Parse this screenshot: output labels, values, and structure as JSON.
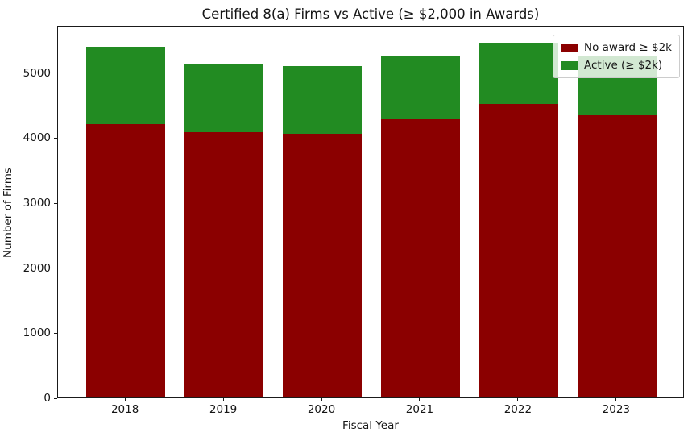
{
  "figure": {
    "title": "Certified 8(a) Firms vs Active (≥ $2,000 in Awards)",
    "xlabel": "Fiscal Year",
    "ylabel": "Number of Firms"
  },
  "chart_data": {
    "type": "bar",
    "stacked": true,
    "title": "Certified 8(a) Firms vs Active (≥ $2,000 in Awards)",
    "xlabel": "Fiscal Year",
    "ylabel": "Number of Firms",
    "categories": [
      "2018",
      "2019",
      "2020",
      "2021",
      "2022",
      "2023"
    ],
    "series": [
      {
        "name": "No award ≥ $2k",
        "color": "#8B0000",
        "values": [
          4210,
          4080,
          4060,
          4275,
          4510,
          4335
        ]
      },
      {
        "name": "Active (≥ $2k)",
        "color": "#228B22",
        "values": [
          1185,
          1050,
          1035,
          985,
          950,
          910
        ]
      }
    ],
    "totals": [
      5395,
      5130,
      5095,
      5260,
      5460,
      5245
    ],
    "yticks": [
      0,
      1000,
      2000,
      3000,
      4000,
      5000
    ],
    "ylim": [
      0,
      5730
    ],
    "grid": false,
    "legend_position": "upper right",
    "colors": {
      "spine": "#1a1a1a",
      "background": "#ffffff"
    }
  }
}
